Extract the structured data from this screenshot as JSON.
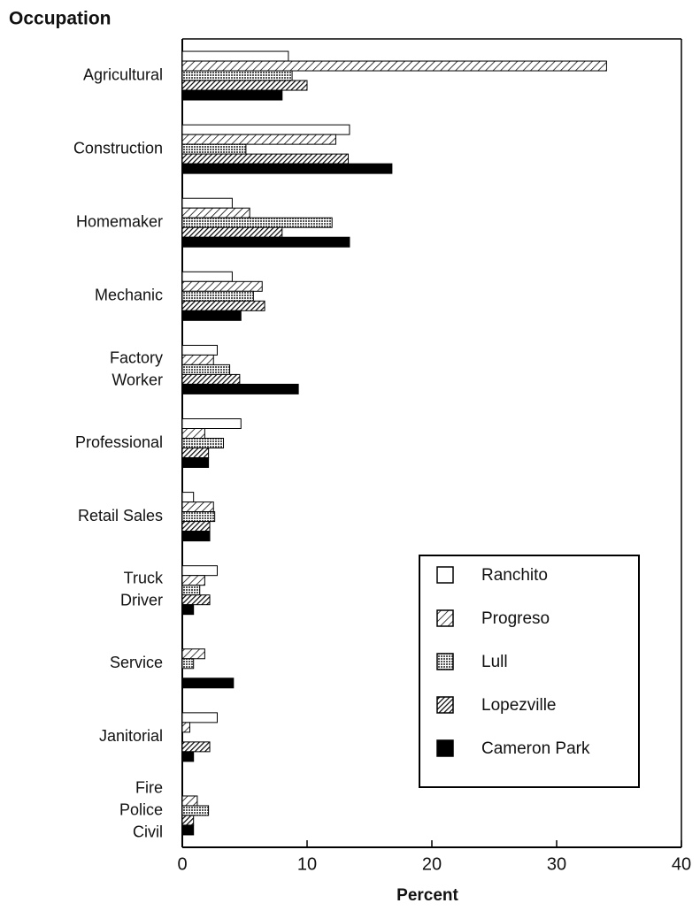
{
  "chart_data": {
    "type": "barh",
    "title": "Occupation",
    "x_label": "Percent",
    "categories": [
      "Agricultural",
      "Construction",
      "Homemaker",
      "Mechanic",
      "Factory\nWorker",
      "Professional",
      "Retail Sales",
      "Truck\nDriver",
      "Service",
      "Janitorial",
      "Fire\nPolice\nCivil"
    ],
    "series": [
      {
        "name": "Ranchito",
        "color": "#ffffff",
        "pattern": "solid",
        "values": [
          8.5,
          13.4,
          4,
          4,
          2.8,
          4.7,
          0.9,
          2.8,
          0,
          2.8,
          0
        ]
      },
      {
        "name": "Progreso",
        "color": "#ffffff",
        "pattern": "hatch",
        "values": [
          34,
          12.3,
          5.4,
          6.4,
          2.5,
          1.8,
          2.5,
          1.8,
          1.8,
          0.6,
          1.2
        ]
      },
      {
        "name": "Lull",
        "color": "#888888",
        "pattern": "cross",
        "values": [
          8.8,
          5.1,
          12,
          5.7,
          3.8,
          3.3,
          2.6,
          1.4,
          0.9,
          0,
          2.1
        ]
      },
      {
        "name": "Lopezville",
        "color": "#444444",
        "pattern": "dense-hatch",
        "values": [
          10,
          13.3,
          8,
          6.6,
          4.6,
          2.1,
          2.2,
          2.2,
          0,
          2.2,
          0.9
        ]
      },
      {
        "name": "Cameron Park",
        "color": "#000000",
        "pattern": "solid",
        "values": [
          8,
          16.8,
          13.4,
          4.7,
          9.3,
          2.1,
          2.2,
          0.9,
          4.1,
          0.9,
          0.9
        ]
      }
    ],
    "xlim": [
      0,
      40
    ],
    "xticks": [
      0,
      10,
      20,
      30,
      40
    ],
    "legend": "lower right"
  }
}
